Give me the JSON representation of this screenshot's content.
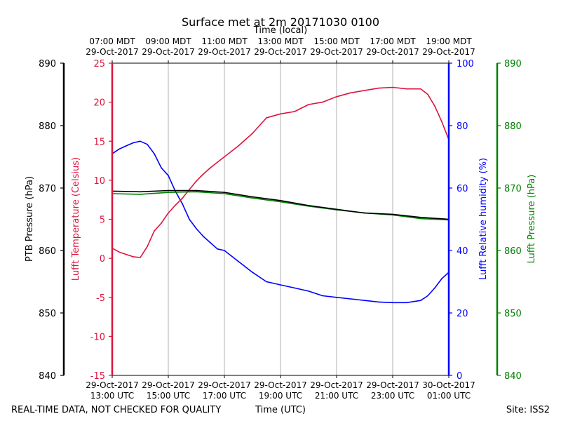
{
  "chart_data": {
    "type": "line",
    "title": "Surface met at 2m 20171030 0100",
    "top_axis_label": "Time (local)",
    "bottom_axis_label": "Time (UTC)",
    "footer_left": "REAL-TIME DATA, NOT CHECKED FOR QUALITY",
    "footer_right": "Site: ISS2",
    "x_range_hours_utc": [
      13,
      25
    ],
    "x_ticks": [
      {
        "hour": 13,
        "top": [
          "07:00 MDT",
          "29-Oct-2017"
        ],
        "bottom": [
          "29-Oct-2017",
          "13:00 UTC"
        ]
      },
      {
        "hour": 15,
        "top": [
          "09:00 MDT",
          "29-Oct-2017"
        ],
        "bottom": [
          "29-Oct-2017",
          "15:00 UTC"
        ]
      },
      {
        "hour": 17,
        "top": [
          "11:00 MDT",
          "29-Oct-2017"
        ],
        "bottom": [
          "29-Oct-2017",
          "17:00 UTC"
        ]
      },
      {
        "hour": 19,
        "top": [
          "13:00 MDT",
          "29-Oct-2017"
        ],
        "bottom": [
          "29-Oct-2017",
          "19:00 UTC"
        ]
      },
      {
        "hour": 21,
        "top": [
          "15:00 MDT",
          "29-Oct-2017"
        ],
        "bottom": [
          "29-Oct-2017",
          "21:00 UTC"
        ]
      },
      {
        "hour": 23,
        "top": [
          "17:00 MDT",
          "29-Oct-2017"
        ],
        "bottom": [
          "29-Oct-2017",
          "23:00 UTC"
        ]
      },
      {
        "hour": 25,
        "top": [
          "19:00 MDT",
          "29-Oct-2017"
        ],
        "bottom": [
          "30-Oct-2017",
          "01:00 UTC"
        ]
      }
    ],
    "axes": {
      "ptb_pressure": {
        "label": "PTB Pressure (hPa)",
        "range": [
          840,
          890
        ],
        "ticks": [
          840,
          850,
          860,
          870,
          880,
          890
        ],
        "color": "#000000"
      },
      "temperature": {
        "label": "Lufft Temperature (Celsius)",
        "range": [
          -15,
          25
        ],
        "ticks": [
          -15,
          -10,
          -5,
          0,
          5,
          10,
          15,
          20,
          25
        ],
        "color": "#dc143c"
      },
      "humidity": {
        "label": "Lufft Relative humidity (%)",
        "range": [
          0,
          100
        ],
        "ticks": [
          0,
          20,
          40,
          60,
          80,
          100
        ],
        "color": "#0000ff"
      },
      "lufft_pressure": {
        "label": "Lufft Pressure (hPa)",
        "range": [
          840,
          890
        ],
        "ticks": [
          840,
          850,
          860,
          870,
          880,
          890
        ],
        "color": "#008000"
      }
    },
    "series": [
      {
        "name": "Lufft Temperature",
        "axis": "temperature",
        "color": "#dc143c",
        "x": [
          13.0,
          13.25,
          13.5,
          13.75,
          14.0,
          14.25,
          14.5,
          14.75,
          15.0,
          15.25,
          15.5,
          15.75,
          16.0,
          16.25,
          16.5,
          16.75,
          17.0,
          17.5,
          18.0,
          18.5,
          19.0,
          19.5,
          20.0,
          20.5,
          21.0,
          21.5,
          22.0,
          22.5,
          23.0,
          23.5,
          24.0,
          24.25,
          24.5,
          24.75,
          25.0
        ],
        "y": [
          1.3,
          0.8,
          0.5,
          0.2,
          0.1,
          1.5,
          3.5,
          4.5,
          5.8,
          6.8,
          7.7,
          8.8,
          9.9,
          10.8,
          11.6,
          12.3,
          13.0,
          14.4,
          16.0,
          18.0,
          18.5,
          18.8,
          19.7,
          20.0,
          20.7,
          21.2,
          21.5,
          21.8,
          21.9,
          21.7,
          21.7,
          21.0,
          19.5,
          17.5,
          15.2
        ]
      },
      {
        "name": "Lufft Relative humidity",
        "axis": "humidity",
        "color": "#0000ff",
        "x": [
          13.0,
          13.25,
          13.5,
          13.75,
          14.0,
          14.25,
          14.5,
          14.75,
          15.0,
          15.25,
          15.5,
          15.75,
          16.0,
          16.25,
          16.5,
          16.75,
          17.0,
          17.5,
          18.0,
          18.5,
          19.0,
          19.5,
          20.0,
          20.5,
          21.0,
          21.5,
          22.0,
          22.5,
          23.0,
          23.5,
          24.0,
          24.25,
          24.5,
          24.75,
          25.0
        ],
        "y": [
          71,
          72.5,
          73.5,
          74.5,
          75,
          74,
          71,
          66.5,
          64,
          59,
          55,
          50,
          47,
          44.5,
          42.5,
          40.5,
          40,
          36.5,
          33,
          30,
          29,
          28,
          27,
          25.5,
          25,
          24.5,
          24,
          23.5,
          23.3,
          23.3,
          24,
          25.5,
          28,
          31,
          33
        ]
      },
      {
        "name": "PTB Pressure",
        "axis": "ptb_pressure",
        "color": "#000000",
        "x": [
          13.0,
          14.0,
          15.0,
          16.0,
          17.0,
          18.0,
          19.0,
          20.0,
          21.0,
          22.0,
          23.0,
          24.0,
          25.0
        ],
        "y": [
          869.5,
          869.4,
          869.6,
          869.6,
          869.3,
          868.6,
          868.0,
          867.2,
          866.6,
          866.0,
          865.8,
          865.3,
          865.0
        ]
      },
      {
        "name": "Lufft Pressure",
        "axis": "lufft_pressure",
        "color": "#008000",
        "x": [
          13.0,
          14.0,
          15.0,
          16.0,
          17.0,
          18.0,
          19.0,
          20.0,
          21.0,
          22.0,
          23.0,
          24.0,
          25.0
        ],
        "y": [
          869.1,
          869.0,
          869.3,
          869.4,
          869.1,
          868.4,
          867.8,
          867.1,
          866.5,
          866.0,
          865.7,
          865.1,
          864.9
        ]
      }
    ]
  }
}
